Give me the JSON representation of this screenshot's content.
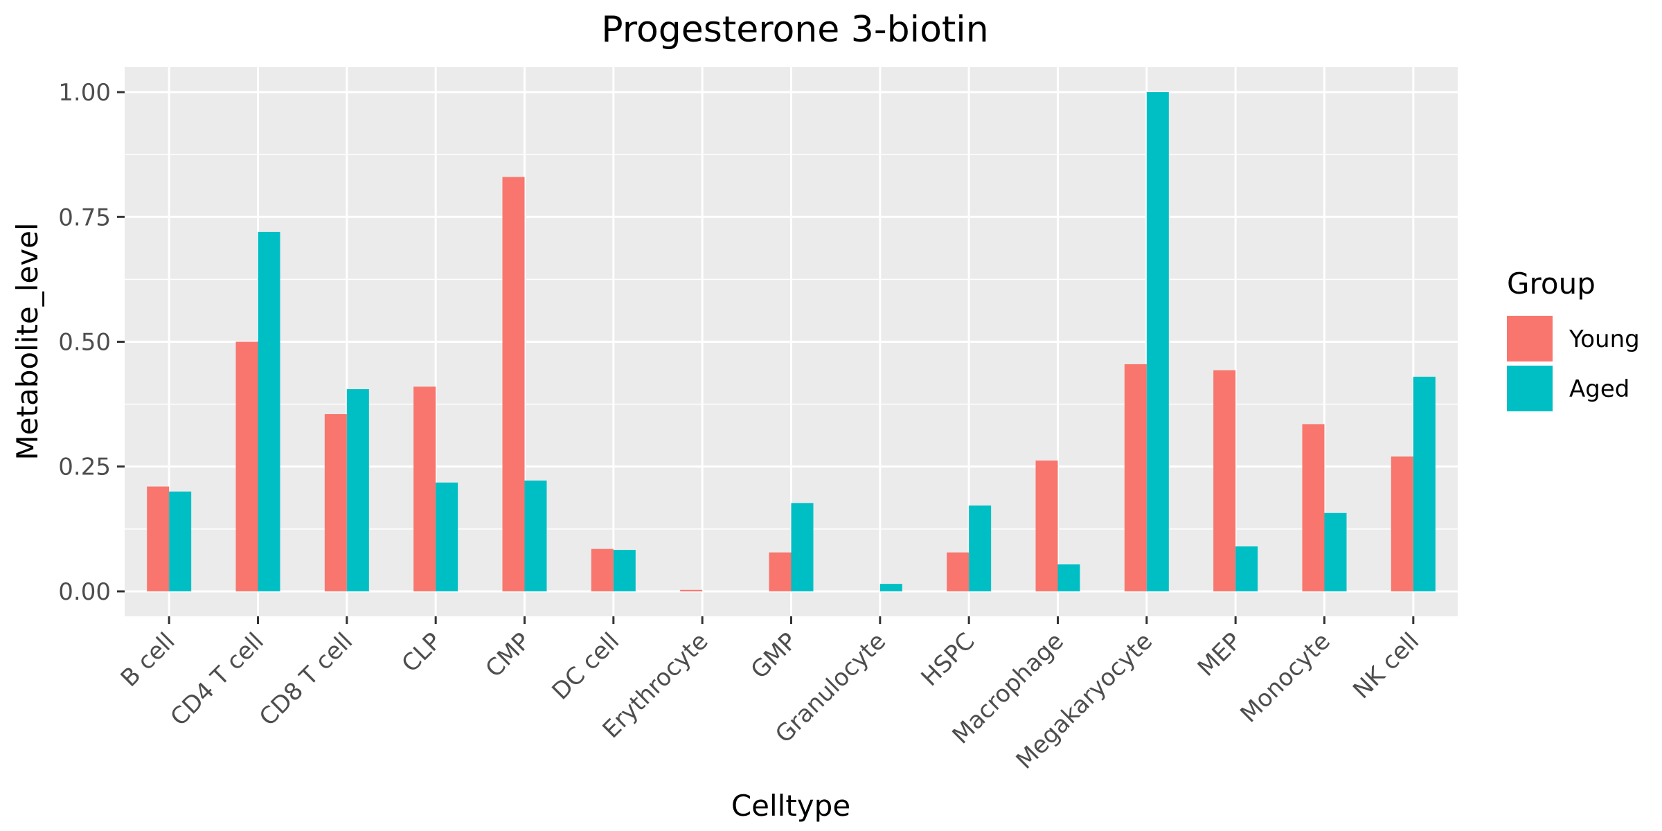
{
  "chart_data": {
    "type": "bar",
    "title": "Progesterone 3-biotin",
    "xlabel": "Celltype",
    "ylabel": "Metabolite_level",
    "ylim": [
      -0.05,
      1.05
    ],
    "yticks": [
      0.0,
      0.25,
      0.5,
      0.75,
      1.0
    ],
    "ytick_labels": [
      "0.00",
      "0.25",
      "0.50",
      "0.75",
      "1.00"
    ],
    "grid": true,
    "legend_position": "right",
    "legend_title": "Group",
    "categories": [
      "B cell",
      "CD4 T cell",
      "CD8 T cell",
      "CLP",
      "CMP",
      "DC cell",
      "Erythrocyte",
      "GMP",
      "Granulocyte",
      "HSPC",
      "Macrophage",
      "Megakaryocyte",
      "MEP",
      "Monocyte",
      "NK cell"
    ],
    "series": [
      {
        "name": "Young",
        "color": "#F8766D",
        "values": [
          0.21,
          0.5,
          0.355,
          0.41,
          0.83,
          0.085,
          0.003,
          0.078,
          0.0,
          0.078,
          0.262,
          0.455,
          0.443,
          0.335,
          0.27
        ]
      },
      {
        "name": "Aged",
        "color": "#00BFC4",
        "values": [
          0.2,
          0.72,
          0.405,
          0.218,
          0.222,
          0.083,
          0.0,
          0.177,
          0.015,
          0.172,
          0.054,
          1.0,
          0.09,
          0.157,
          0.43
        ]
      }
    ]
  }
}
